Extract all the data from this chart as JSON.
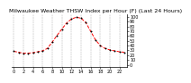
{
  "title": "Milwaukee Weather THSW Index per Hour (F) (Last 24 Hours)",
  "hours": [
    0,
    1,
    2,
    3,
    4,
    5,
    6,
    7,
    8,
    9,
    10,
    11,
    12,
    13,
    14,
    15,
    16,
    17,
    18,
    19,
    20,
    21,
    22,
    23
  ],
  "values": [
    28,
    26,
    24,
    24,
    25,
    27,
    29,
    34,
    47,
    61,
    74,
    87,
    95,
    99,
    97,
    88,
    70,
    52,
    40,
    34,
    31,
    29,
    27,
    26
  ],
  "line_color": "#ff0000",
  "marker_color": "#000000",
  "bg_color": "#ffffff",
  "grid_color": "#888888",
  "ylim": [
    -5,
    105
  ],
  "xlim": [
    -0.5,
    23.5
  ],
  "yticks": [
    0,
    10,
    20,
    30,
    40,
    50,
    60,
    70,
    80,
    90,
    100
  ],
  "ytick_labels": [
    "0",
    "10",
    "20",
    "30",
    "40",
    "50",
    "60",
    "70",
    "80",
    "90",
    "100"
  ],
  "xticks": [
    0,
    2,
    4,
    6,
    8,
    10,
    12,
    14,
    16,
    18,
    20,
    22
  ],
  "xtick_labels": [
    "0",
    "2",
    "4",
    "6",
    "8",
    "10",
    "12",
    "14",
    "16",
    "18",
    "20",
    "22"
  ],
  "title_fontsize": 4.5,
  "tick_fontsize": 3.5
}
